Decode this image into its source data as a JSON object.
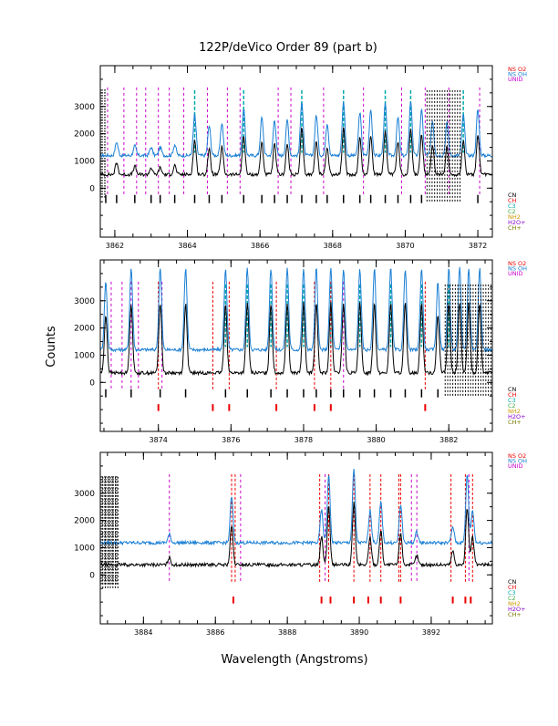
{
  "title": "122P/deVico Order 89 (part b)",
  "xlabel": "Wavelength (Angstroms)",
  "ylabel": "Counts",
  "colors": {
    "frame": "#000000",
    "raw_spectrum": "#000000",
    "model_spectrum": "#1a7fd4",
    "unid": "#cc00cc",
    "molecule_red": "#ee0000",
    "cn": "#000000",
    "ch": "#ee0000",
    "c3": "#00aaaa",
    "c2": "#44aa44",
    "nh2": "#cc9900",
    "h2o_plus": "#8800cc",
    "ch_plus": "#777700"
  },
  "top_legend": [
    {
      "text": "NS O2",
      "color": "#ee0000"
    },
    {
      "text": "NS OH",
      "color": "#1a7fd4"
    },
    {
      "text": "UNID",
      "color": "#cc00cc"
    }
  ],
  "bottom_legend": [
    {
      "text": "CN",
      "color": "#000000"
    },
    {
      "text": "CH",
      "color": "#ee0000"
    },
    {
      "text": "C3",
      "color": "#00aaaa"
    },
    {
      "text": "C2",
      "color": "#44aa44"
    },
    {
      "text": "NH2",
      "color": "#cc9900"
    },
    {
      "text": "H2O+",
      "color": "#8800cc"
    },
    {
      "text": "CH+",
      "color": "#777700"
    }
  ],
  "chart_data": [
    {
      "type": "line",
      "panel": "top",
      "xlim": [
        3861.6,
        3872.4
      ],
      "ylim": [
        -1800,
        4500
      ],
      "x_ticks": [
        3862,
        3864,
        3866,
        3868,
        3870,
        3872
      ],
      "x_tick_labels": [
        "3862",
        "3864",
        "3866",
        "3868",
        "3870",
        "3872"
      ],
      "y_ticks": [
        0,
        1000,
        2000,
        3000
      ],
      "y_tick_labels": [
        "0",
        "1000",
        "2000",
        "3000"
      ],
      "series": [
        {
          "name": "model",
          "baseline": 1200,
          "scale": 1.0
        },
        {
          "name": "data",
          "baseline": 500,
          "scale": 0.85
        }
      ],
      "peaks": [
        [
          3862.05,
          500
        ],
        [
          3862.55,
          350
        ],
        [
          3863.0,
          300
        ],
        [
          3863.25,
          300
        ],
        [
          3863.65,
          400
        ],
        [
          3864.2,
          1500
        ],
        [
          3864.6,
          1100
        ],
        [
          3864.95,
          1200
        ],
        [
          3865.55,
          1700
        ],
        [
          3866.05,
          1400
        ],
        [
          3866.4,
          1300
        ],
        [
          3866.75,
          1300
        ],
        [
          3867.15,
          2000
        ],
        [
          3867.55,
          1500
        ],
        [
          3867.85,
          1200
        ],
        [
          3868.3,
          2000
        ],
        [
          3868.75,
          1600
        ],
        [
          3869.05,
          1700
        ],
        [
          3869.45,
          1900
        ],
        [
          3869.8,
          1400
        ],
        [
          3870.15,
          2000
        ],
        [
          3870.45,
          1700
        ],
        [
          3870.75,
          1300
        ],
        [
          3871.15,
          1200
        ],
        [
          3871.6,
          1500
        ],
        [
          3872.0,
          1700
        ]
      ],
      "saturated": [
        [
          3861.6,
          3861.75
        ]
      ],
      "unid_lines": [
        3861.8,
        3862.25,
        3862.6,
        3862.85,
        3863.2,
        3863.5,
        3863.9,
        3864.55,
        3865.1,
        3865.45,
        3866.5,
        3866.85,
        3867.75,
        3868.85,
        3869.9,
        3870.55,
        3871.2,
        3872.05
      ],
      "teal_lines": [
        3864.2,
        3865.55,
        3867.15,
        3868.3,
        3869.45,
        3870.15,
        3871.6
      ],
      "cn_dense": [
        3870.6,
        3871.55
      ],
      "cn_ticks": [
        3861.75,
        3862.05,
        3862.55,
        3863.0,
        3863.25,
        3863.65,
        3864.2,
        3864.6,
        3864.95,
        3865.55,
        3866.05,
        3866.4,
        3866.75,
        3867.15,
        3867.55,
        3867.85,
        3868.3,
        3868.75,
        3869.05,
        3869.45,
        3869.8,
        3870.15,
        3870.45,
        3872.0
      ],
      "ch_ticks": []
    },
    {
      "type": "line",
      "panel": "middle",
      "xlim": [
        3872.4,
        3883.2
      ],
      "ylim": [
        -1800,
        4500
      ],
      "x_ticks": [
        3874,
        3876,
        3878,
        3880,
        3882
      ],
      "x_tick_labels": [
        "3874",
        "3876",
        "3878",
        "3880",
        "3882"
      ],
      "y_ticks": [
        0,
        1000,
        2000,
        3000
      ],
      "y_tick_labels": [
        "0",
        "1000",
        "2000",
        "3000"
      ],
      "series": [
        {
          "name": "model",
          "baseline": 1200,
          "scale": 1.0
        },
        {
          "name": "data",
          "baseline": 350,
          "scale": 0.85
        }
      ],
      "peaks": [
        [
          3872.55,
          2500
        ],
        [
          3873.25,
          3000
        ],
        [
          3874.05,
          3000
        ],
        [
          3874.75,
          3000
        ],
        [
          3875.85,
          3000
        ],
        [
          3876.45,
          3000
        ],
        [
          3877.1,
          3000
        ],
        [
          3877.55,
          3000
        ],
        [
          3878.0,
          3000
        ],
        [
          3878.35,
          3000
        ],
        [
          3878.75,
          3000
        ],
        [
          3879.1,
          3000
        ],
        [
          3879.55,
          3000
        ],
        [
          3879.95,
          3000
        ],
        [
          3880.4,
          3000
        ],
        [
          3880.8,
          3000
        ],
        [
          3881.25,
          3000
        ],
        [
          3881.7,
          2500
        ],
        [
          3882.0,
          3000
        ],
        [
          3882.3,
          3000
        ],
        [
          3882.55,
          3000
        ],
        [
          3882.85,
          3000
        ]
      ],
      "saturated": [],
      "unid_lines": [
        3872.7,
        3873.0,
        3873.25,
        3873.45,
        3874.1,
        3879.1
      ],
      "teal_lines": [
        3875.85,
        3876.45,
        3877.1,
        3877.55,
        3878.0,
        3878.75,
        3879.55,
        3880.4,
        3881.25,
        3882.0
      ],
      "red_lines": [
        3874.0,
        3875.5,
        3875.95,
        3877.25,
        3878.3,
        3878.75,
        3881.35
      ],
      "cn_dense": [
        3881.9,
        3883.2
      ],
      "cn_ticks": [
        3872.55,
        3873.25,
        3874.05,
        3874.75,
        3875.85,
        3876.45,
        3877.1,
        3877.55,
        3878.0,
        3878.35,
        3878.75,
        3879.1,
        3879.55,
        3879.95,
        3880.4,
        3880.8,
        3881.25,
        3881.7
      ],
      "ch_ticks": [
        3874.0,
        3875.5,
        3875.95,
        3877.25,
        3878.3,
        3878.75,
        3881.35
      ]
    },
    {
      "type": "line",
      "panel": "bottom",
      "xlim": [
        3882.8,
        3893.7
      ],
      "ylim": [
        -1800,
        4500
      ],
      "x_ticks": [
        3884,
        3886,
        3888,
        3890,
        3892
      ],
      "x_tick_labels": [
        "3884",
        "3886",
        "3888",
        "3890",
        "3892"
      ],
      "y_ticks": [
        0,
        1000,
        2000,
        3000
      ],
      "y_tick_labels": [
        "0",
        "1000",
        "2000",
        "3000"
      ],
      "series": [
        {
          "name": "model",
          "baseline": 1180,
          "scale": 1.0
        },
        {
          "name": "data",
          "baseline": 370,
          "scale": 0.85
        }
      ],
      "peaks": [
        [
          3884.72,
          300
        ],
        [
          3886.45,
          1700
        ],
        [
          3888.95,
          1200
        ],
        [
          3889.15,
          2500
        ],
        [
          3889.85,
          2700
        ],
        [
          3890.3,
          1200
        ],
        [
          3890.6,
          1500
        ],
        [
          3891.15,
          1400
        ],
        [
          3891.6,
          400
        ],
        [
          3892.6,
          600
        ],
        [
          3893.0,
          2500
        ],
        [
          3893.15,
          1200
        ]
      ],
      "saturated": [
        [
          3882.8,
          3883.3
        ]
      ],
      "unid_lines": [
        3884.72,
        3886.7,
        3889.05,
        3891.45,
        3891.6,
        3893.05
      ],
      "teal_lines": [],
      "red_lines": [
        3886.45,
        3886.55,
        3888.9,
        3889.15,
        3889.85,
        3890.3,
        3890.6,
        3891.1,
        3891.15,
        3892.55,
        3892.95,
        3893.15
      ],
      "cn_dense": [
        3882.8,
        3883.35
      ],
      "cn_ticks": [],
      "ch_ticks": [
        3886.5,
        3888.95,
        3889.2,
        3889.85,
        3890.25,
        3890.6,
        3891.15,
        3892.6,
        3892.95,
        3893.1
      ]
    }
  ]
}
